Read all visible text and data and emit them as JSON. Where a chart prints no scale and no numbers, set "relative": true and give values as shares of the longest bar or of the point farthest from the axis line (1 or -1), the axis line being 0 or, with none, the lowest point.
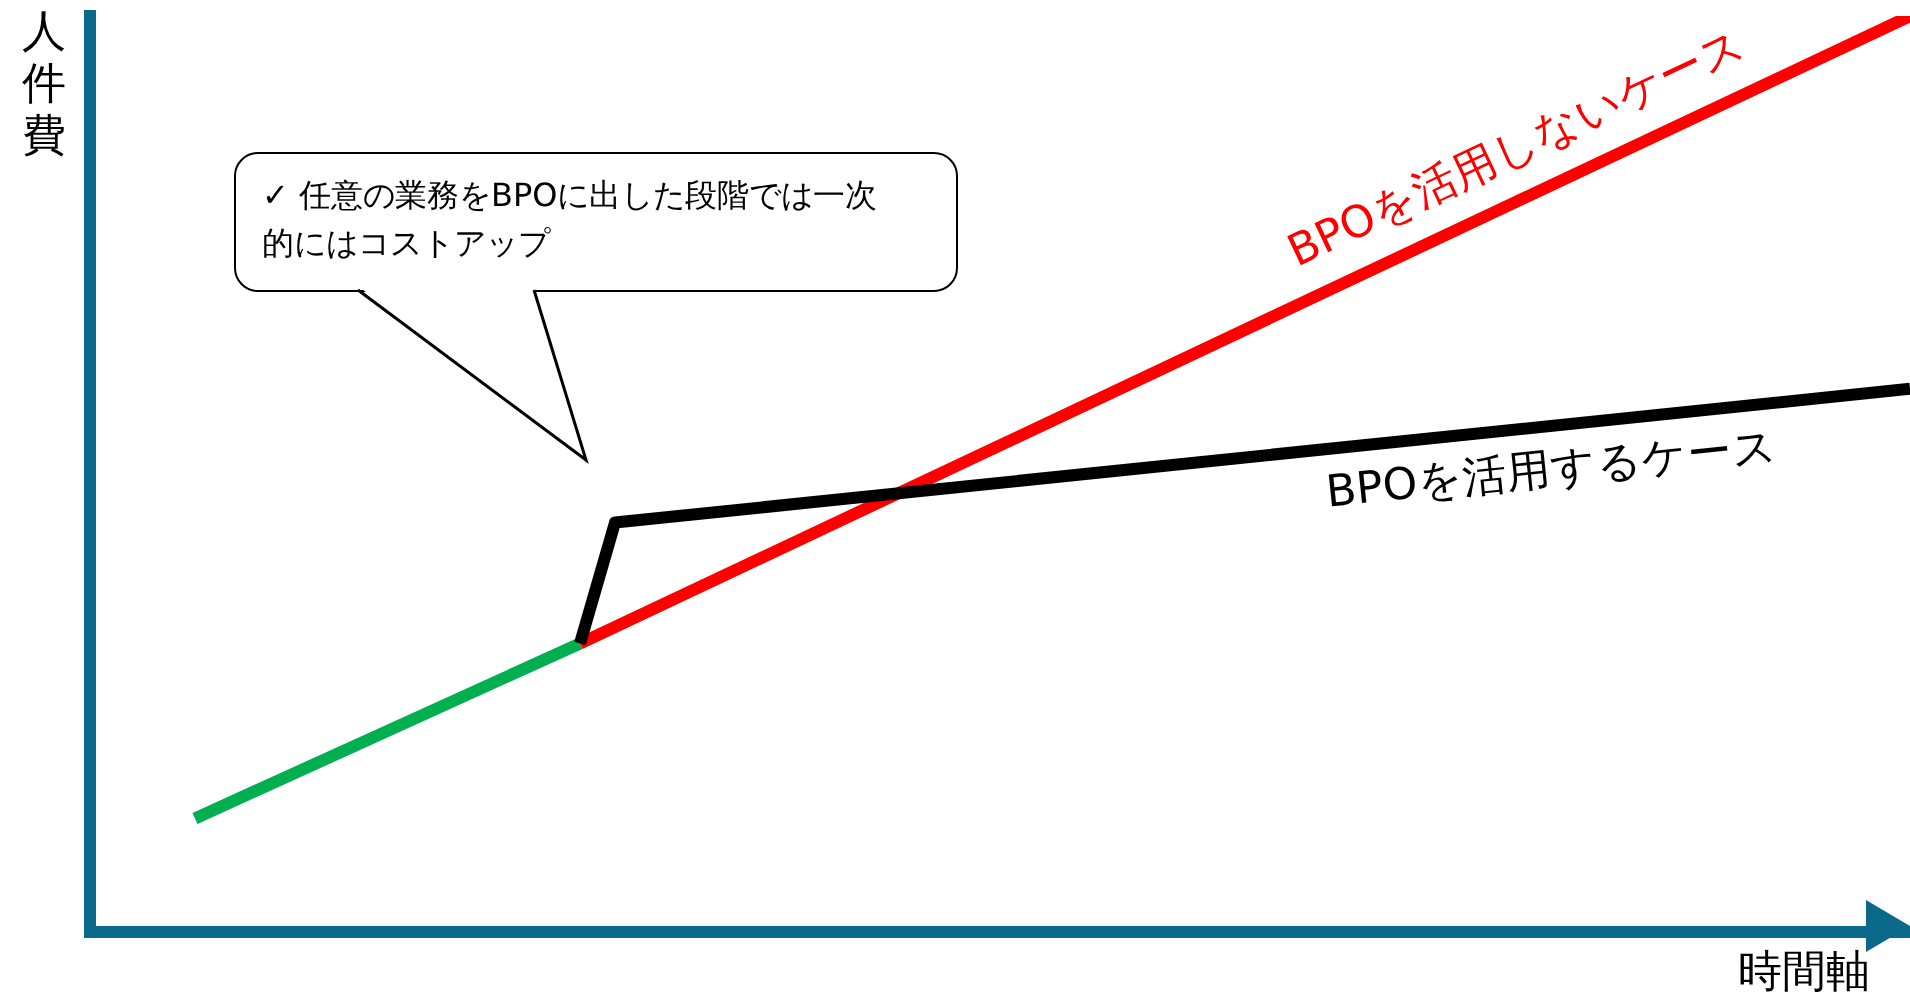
{
  "chart_data": {
    "type": "line",
    "relative": true,
    "xlabel": "時間軸",
    "ylabel": "人件費",
    "annotations": [
      "✓ 任意の業務をBPOに出した段階では一次的にはコストアップ"
    ],
    "grid": false,
    "legend": false,
    "marker": "none",
    "line_style": "solid",
    "tick_labels": false,
    "categories": [
      null,
      null,
      null,
      null,
      null,
      null,
      null,
      null,
      null,
      null,
      null,
      null,
      null,
      null,
      null,
      null,
      null,
      null,
      null,
      null,
      null,
      null,
      null,
      null,
      null,
      null,
      null,
      null,
      null,
      null,
      null,
      null,
      null,
      null,
      null,
      null,
      null,
      null,
      null,
      null,
      null,
      null,
      null,
      null,
      null,
      null,
      null,
      null,
      null,
      null,
      null,
      null,
      null
    ],
    "series": [
      {
        "name": "BPOを活用するケース",
        "color": "#000000",
        "values": [
          null,
          null,
          null,
          null,
          null,
          null,
          null,
          null,
          null,
          null,
          null,
          null,
          null,
          null,
          0.315,
          0.447,
          null,
          null,
          null,
          null,
          null,
          null,
          null,
          null,
          null,
          null,
          null,
          null,
          null,
          null,
          null,
          null,
          null,
          null,
          null,
          null,
          null,
          null,
          null,
          null,
          null,
          null,
          null,
          null,
          null,
          null,
          null,
          null,
          null,
          null,
          null,
          null,
          0.593
        ]
      },
      {
        "name": "BPOを活用しないケース",
        "color": "#ff0000",
        "values": [
          null,
          null,
          null,
          null,
          null,
          null,
          null,
          null,
          null,
          null,
          null,
          null,
          null,
          null,
          0.315,
          null,
          null,
          null,
          null,
          null,
          null,
          null,
          null,
          null,
          null,
          null,
          null,
          null,
          null,
          null,
          null,
          null,
          null,
          null,
          null,
          null,
          null,
          null,
          null,
          null,
          null,
          null,
          null,
          null,
          null,
          null,
          null,
          null,
          null,
          null,
          null,
          null,
          1.0
        ]
      },
      {
        "color": "#00b050",
        "values": [
          null,
          null,
          null,
          0.124,
          null,
          null,
          null,
          null,
          null,
          null,
          null,
          null,
          null,
          null,
          0.315,
          null,
          null,
          null,
          null,
          null,
          null,
          null,
          null,
          null,
          null,
          null,
          null,
          null,
          null,
          null,
          null,
          null,
          null,
          null,
          null,
          null,
          null,
          null,
          null,
          null,
          null,
          null,
          null,
          null,
          null,
          null,
          null,
          null,
          null,
          null,
          null,
          null,
          null
        ]
      }
    ]
  }
}
